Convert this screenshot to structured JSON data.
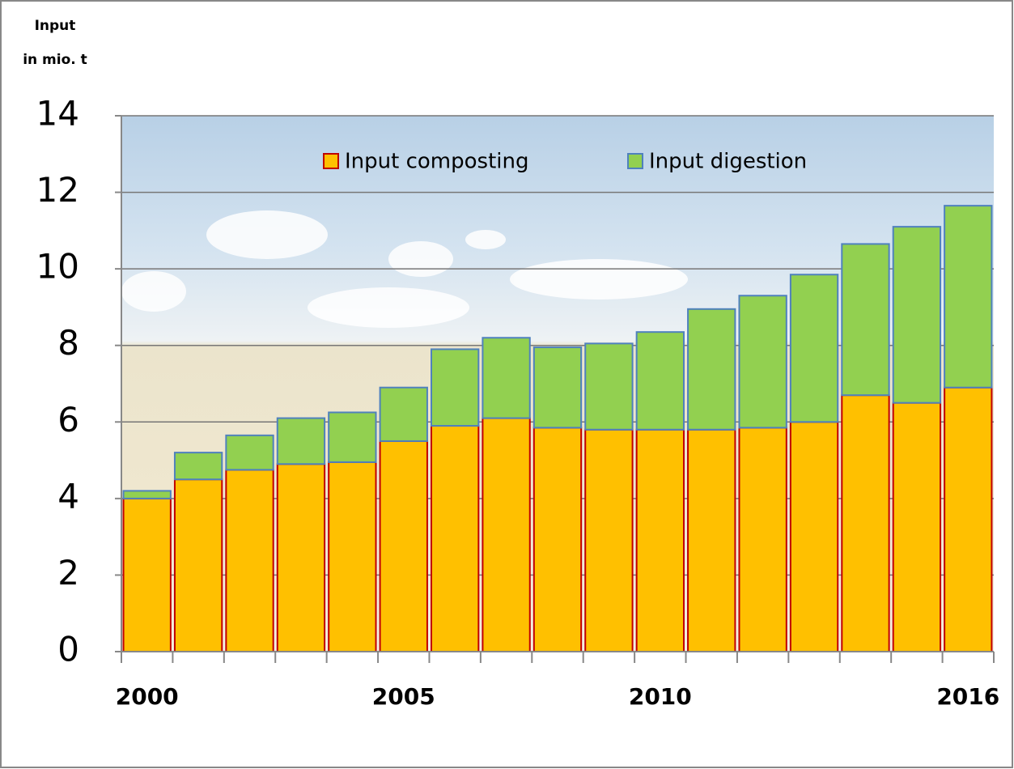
{
  "chart_data": {
    "type": "stacked_bar",
    "y_label": [
      "Input",
      "in mio. t"
    ],
    "categories": [
      "2000",
      null,
      null,
      null,
      null,
      "2005",
      null,
      null,
      null,
      null,
      "2010",
      null,
      null,
      null,
      null,
      null,
      "2016"
    ],
    "series": [
      {
        "name": "Input composting",
        "color": "#FFC000",
        "stroke": "#C00000",
        "values": [
          4.0,
          4.5,
          4.75,
          4.9,
          4.95,
          5.5,
          5.9,
          6.1,
          5.85,
          5.8,
          5.8,
          5.8,
          5.85,
          6.0,
          6.7,
          6.5,
          6.9
        ]
      },
      {
        "name": "Input digestion",
        "color": "#92D050",
        "stroke": "#4F81BD",
        "values": [
          0.2,
          0.7,
          0.9,
          1.2,
          1.3,
          1.4,
          2.0,
          2.1,
          2.1,
          2.25,
          2.55,
          3.15,
          3.45,
          3.85,
          3.95,
          4.6,
          4.75
        ]
      }
    ],
    "ylim": [
      0,
      14
    ],
    "yticks": [
      0,
      2,
      4,
      6,
      8,
      10,
      12,
      14
    ],
    "grid": true
  }
}
